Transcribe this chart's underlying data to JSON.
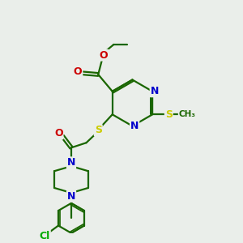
{
  "background_color": "#eaeeea",
  "atom_colors": {
    "C": "#1a6600",
    "N": "#0000cc",
    "O": "#cc0000",
    "S": "#cccc00",
    "Cl": "#00aa00"
  },
  "bond_color": "#1a6600",
  "line_width": 1.6,
  "figsize": [
    3.0,
    3.0
  ],
  "dpi": 100
}
